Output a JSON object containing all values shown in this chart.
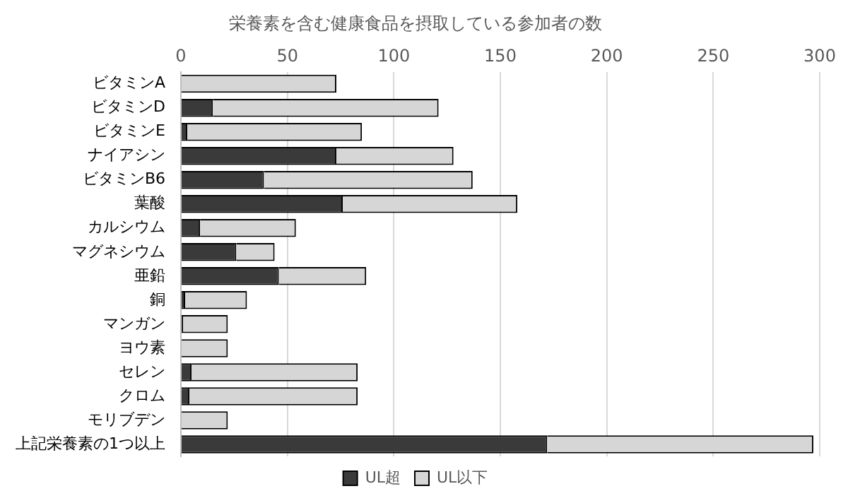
{
  "chart_data": {
    "type": "bar",
    "orientation": "horizontal",
    "stacked": true,
    "title": "栄養素を含む健康食品を摂取している参加者の数",
    "categories": [
      "ビタミンA",
      "ビタミンD",
      "ビタミンE",
      "ナイアシン",
      "ビタミンB6",
      "葉酸",
      "カルシウム",
      "マグネシウム",
      "亜鉛",
      "銅",
      "マンガン",
      "ヨウ素",
      "セレン",
      "クロム",
      "モリブデン",
      "上記栄養素の1つ以上"
    ],
    "series": [
      {
        "name": "UL超",
        "color": "#3a3a3a",
        "values": [
          0,
          15,
          3,
          73,
          39,
          76,
          9,
          26,
          46,
          2,
          1,
          0,
          5,
          4,
          0,
          172
        ]
      },
      {
        "name": "UL以下",
        "color": "#d6d6d6",
        "values": [
          73,
          106,
          82,
          55,
          98,
          82,
          45,
          18,
          41,
          29,
          21,
          22,
          78,
          79,
          22,
          125
        ]
      }
    ],
    "xlim": [
      0,
      300
    ],
    "xticks": [
      0,
      50,
      100,
      150,
      200,
      250,
      300
    ],
    "grid": "x",
    "legend": "bottom"
  }
}
